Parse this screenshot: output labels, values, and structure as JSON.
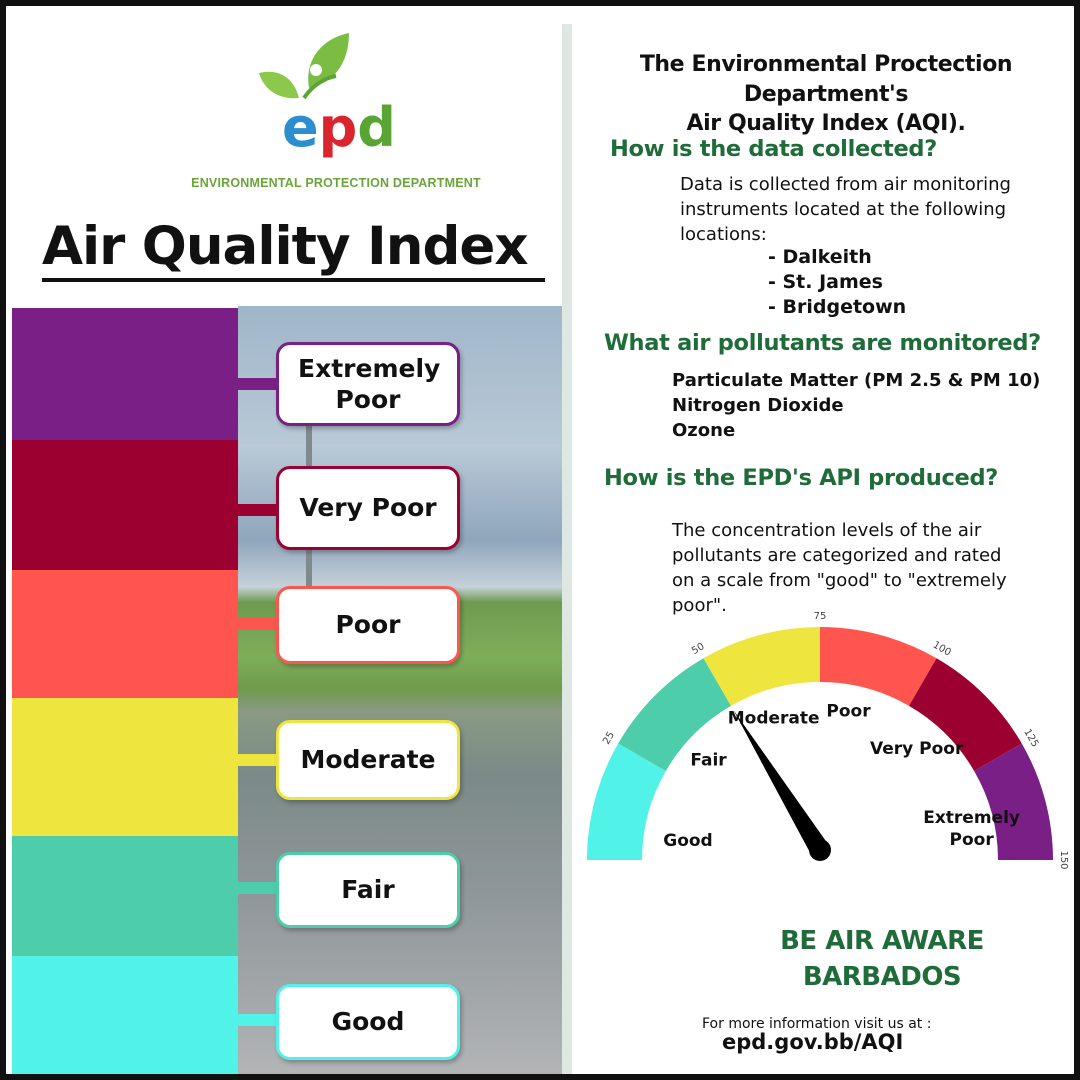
{
  "logo": {
    "wordmark": "epd",
    "caption": "ENVIRONMENTAL PROTECTION DEPARTMENT"
  },
  "left_title": "Air Quality Index",
  "colors": {
    "extremely_poor": "#7a1f86",
    "very_poor": "#9c0030",
    "poor": "#ff554f",
    "moderate": "#eee63f",
    "fair": "#4dcdaa",
    "good": "#51f2e8",
    "heading_green": "#1f6b3a"
  },
  "categories": [
    {
      "label": "Extremely Poor",
      "color": "#7a1f86"
    },
    {
      "label": "Very Poor",
      "color": "#9c0030"
    },
    {
      "label": "Poor",
      "color": "#ff554f"
    },
    {
      "label": "Moderate",
      "color": "#eee63f"
    },
    {
      "label": "Fair",
      "color": "#4dcdaa"
    },
    {
      "label": "Good",
      "color": "#51f2e8"
    }
  ],
  "right": {
    "title_line1": "The Environmental Proctection Department's",
    "title_line2": "Air Quality Index (AQI).",
    "q1": "How is the data collected?",
    "q1_text_1": "Data is collected from air monitoring",
    "q1_text_2": "instruments located at the following",
    "q1_text_3": "locations:",
    "locations": [
      "- Dalkeith",
      "- St. James",
      "- Bridgetown"
    ],
    "q2": "What air pollutants are monitored?",
    "pollutants": [
      "Particulate Matter (PM 2.5  & PM 10)",
      "Nitrogen Dioxide",
      "Ozone"
    ],
    "q3": "How is the EPD's API produced?",
    "q3_text_1": "The  concentration  levels  of  the  air",
    "q3_text_2": "pollutants  are  categorized  and  rated",
    "q3_text_3": "on  a  scale  from  \"good\"  to  \"extremely",
    "q3_text_4": "poor\".",
    "slogan_line1": "BE AIR AWARE",
    "slogan_line2": "BARBADOS",
    "info": "For more information visit us at :",
    "url": "epd.gov.bb/AQI"
  },
  "gauge": {
    "min": 0,
    "max": 150,
    "needle_value": 50,
    "ticks": [
      "25",
      "50",
      "75",
      "100",
      "125",
      "150"
    ],
    "segments": [
      {
        "label": "Good",
        "from": 0,
        "to": 25,
        "color": "#51f2e8"
      },
      {
        "label": "Fair",
        "from": 25,
        "to": 50,
        "color": "#4dcdaa"
      },
      {
        "label": "Moderate",
        "from": 50,
        "to": 75,
        "color": "#eee63f"
      },
      {
        "label": "Poor",
        "from": 75,
        "to": 100,
        "color": "#ff554f"
      },
      {
        "label": "Very Poor",
        "from": 100,
        "to": 125,
        "color": "#9c0030"
      },
      {
        "label": "Extremely Poor",
        "from": 125,
        "to": 150,
        "color": "#7a1f86"
      }
    ]
  }
}
